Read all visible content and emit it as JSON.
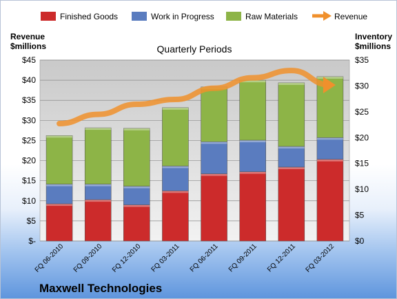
{
  "chart_data": {
    "type": "bar",
    "stacked": true,
    "title": "Quarterly Periods",
    "company": "Maxwell Technologies",
    "categories": [
      "FQ 06-2010",
      "FQ 09-2010",
      "FQ 12-2010",
      "FQ 03-2011",
      "FQ 06-2011",
      "FQ 09-2011",
      "FQ 12-2011",
      "FQ 03-2012"
    ],
    "left_axis": {
      "label_line1": "Revenue",
      "label_line2": "$millions",
      "ylim": [
        0,
        45
      ],
      "ticks": [
        "$-",
        "$5",
        "$10",
        "$15",
        "$20",
        "$25",
        "$30",
        "$35",
        "$40",
        "$45"
      ]
    },
    "right_axis": {
      "label_line1": "Inventory",
      "label_line2": "$millions",
      "ylim": [
        0,
        35
      ],
      "ticks": [
        "$0",
        "$5",
        "$10",
        "$15",
        "$20",
        "$25",
        "$30",
        "$35"
      ]
    },
    "series": [
      {
        "name": "Finished Goods",
        "axis": "right",
        "color": "#cc2b2b",
        "values": [
          7.2,
          8.0,
          7.0,
          9.7,
          13.0,
          13.4,
          14.3,
          15.8
        ]
      },
      {
        "name": "Work in Progress",
        "axis": "right",
        "color": "#5a7cbf",
        "values": [
          3.8,
          3.0,
          3.6,
          4.8,
          6.2,
          6.1,
          4.0,
          4.2
        ]
      },
      {
        "name": "Raw Materials",
        "axis": "right",
        "color": "#8db447",
        "values": [
          9.4,
          10.9,
          11.2,
          11.3,
          10.6,
          11.6,
          12.3,
          11.8
        ]
      },
      {
        "name": "Revenue",
        "axis": "left",
        "type": "line",
        "color": "#f0902c",
        "values": [
          29.2,
          31.5,
          34.0,
          35.2,
          38.0,
          40.6,
          42.4,
          38.8
        ]
      }
    ],
    "grid": true,
    "legend": "top"
  }
}
